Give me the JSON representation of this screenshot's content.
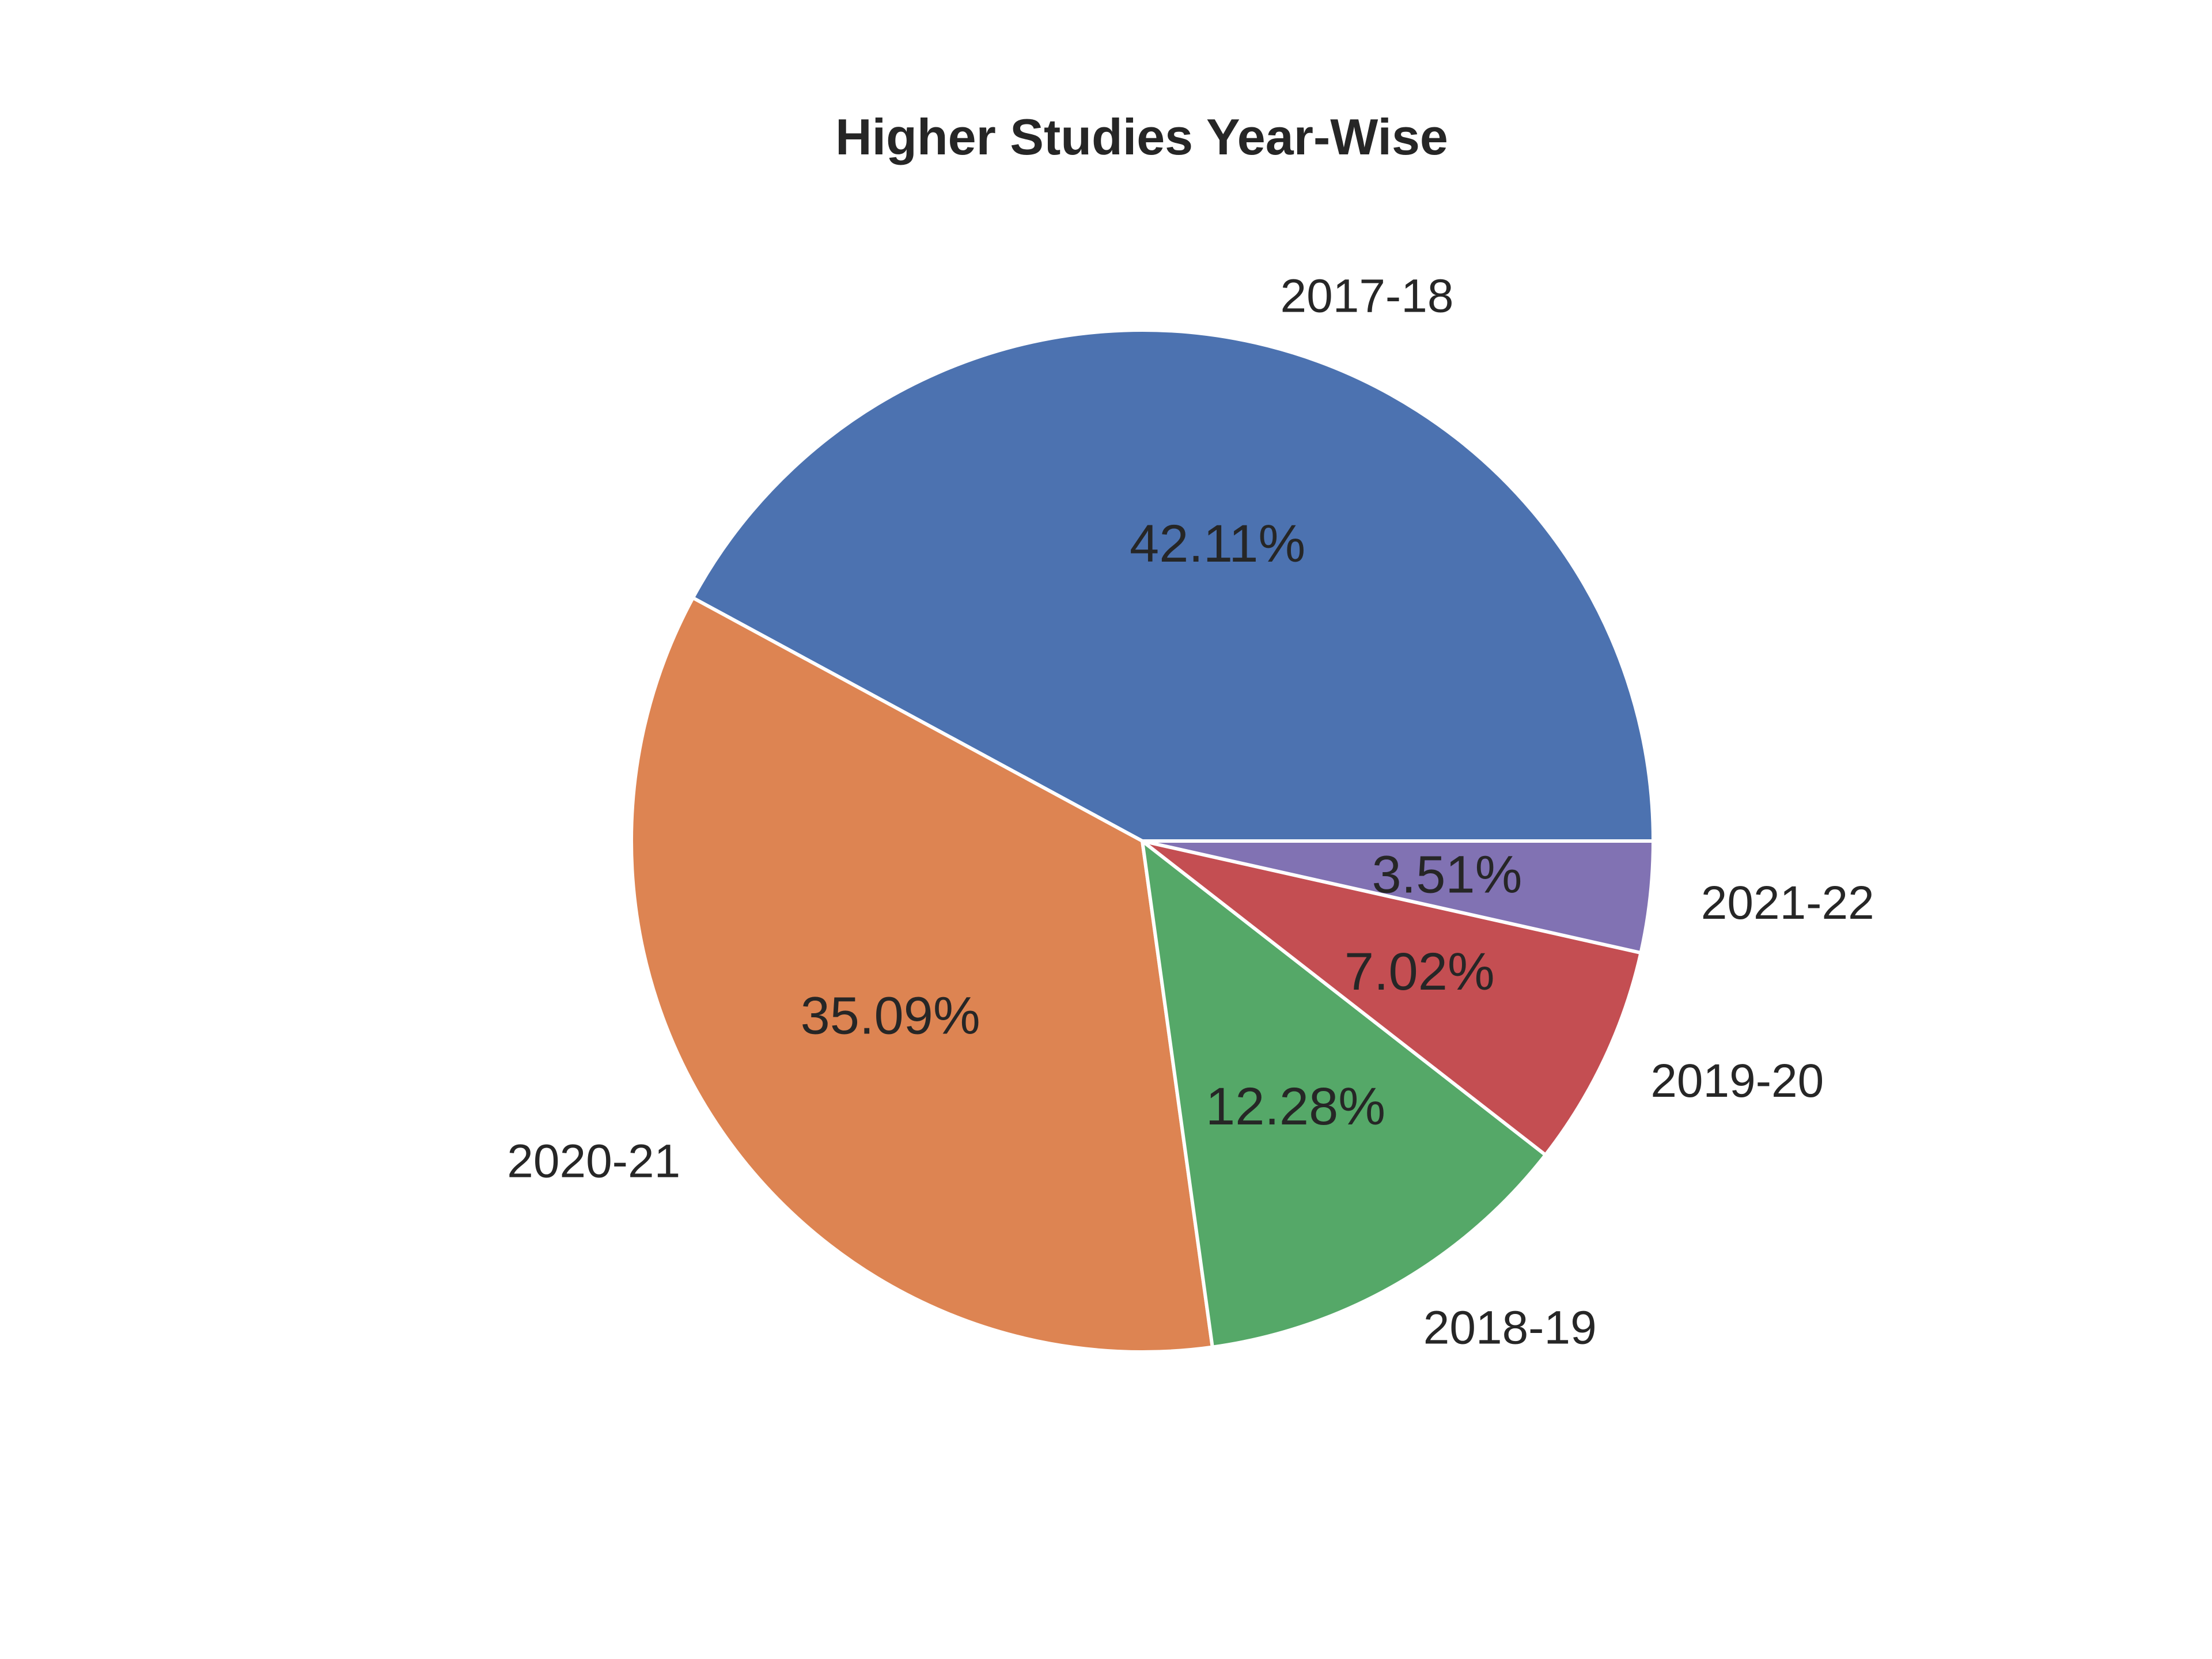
{
  "chart_data": {
    "type": "pie",
    "title": "Higher Studies Year-Wise",
    "slices": [
      {
        "label": "2017-18",
        "value": 42.11,
        "pct_text": "42.11%",
        "color": "#4c72b0"
      },
      {
        "label": "2020-21",
        "value": 35.09,
        "pct_text": "35.09%",
        "color": "#dd8452"
      },
      {
        "label": "2018-19",
        "value": 12.28,
        "pct_text": "12.28%",
        "color": "#55a868"
      },
      {
        "label": "2019-20",
        "value": 7.02,
        "pct_text": "7.02%",
        "color": "#c44e52"
      },
      {
        "label": "2021-22",
        "value": 3.51,
        "pct_text": "3.51%",
        "color": "#8172b3"
      }
    ],
    "start_angle_deg": 0,
    "direction": "counterclockwise",
    "edge_color": "#ffffff"
  }
}
